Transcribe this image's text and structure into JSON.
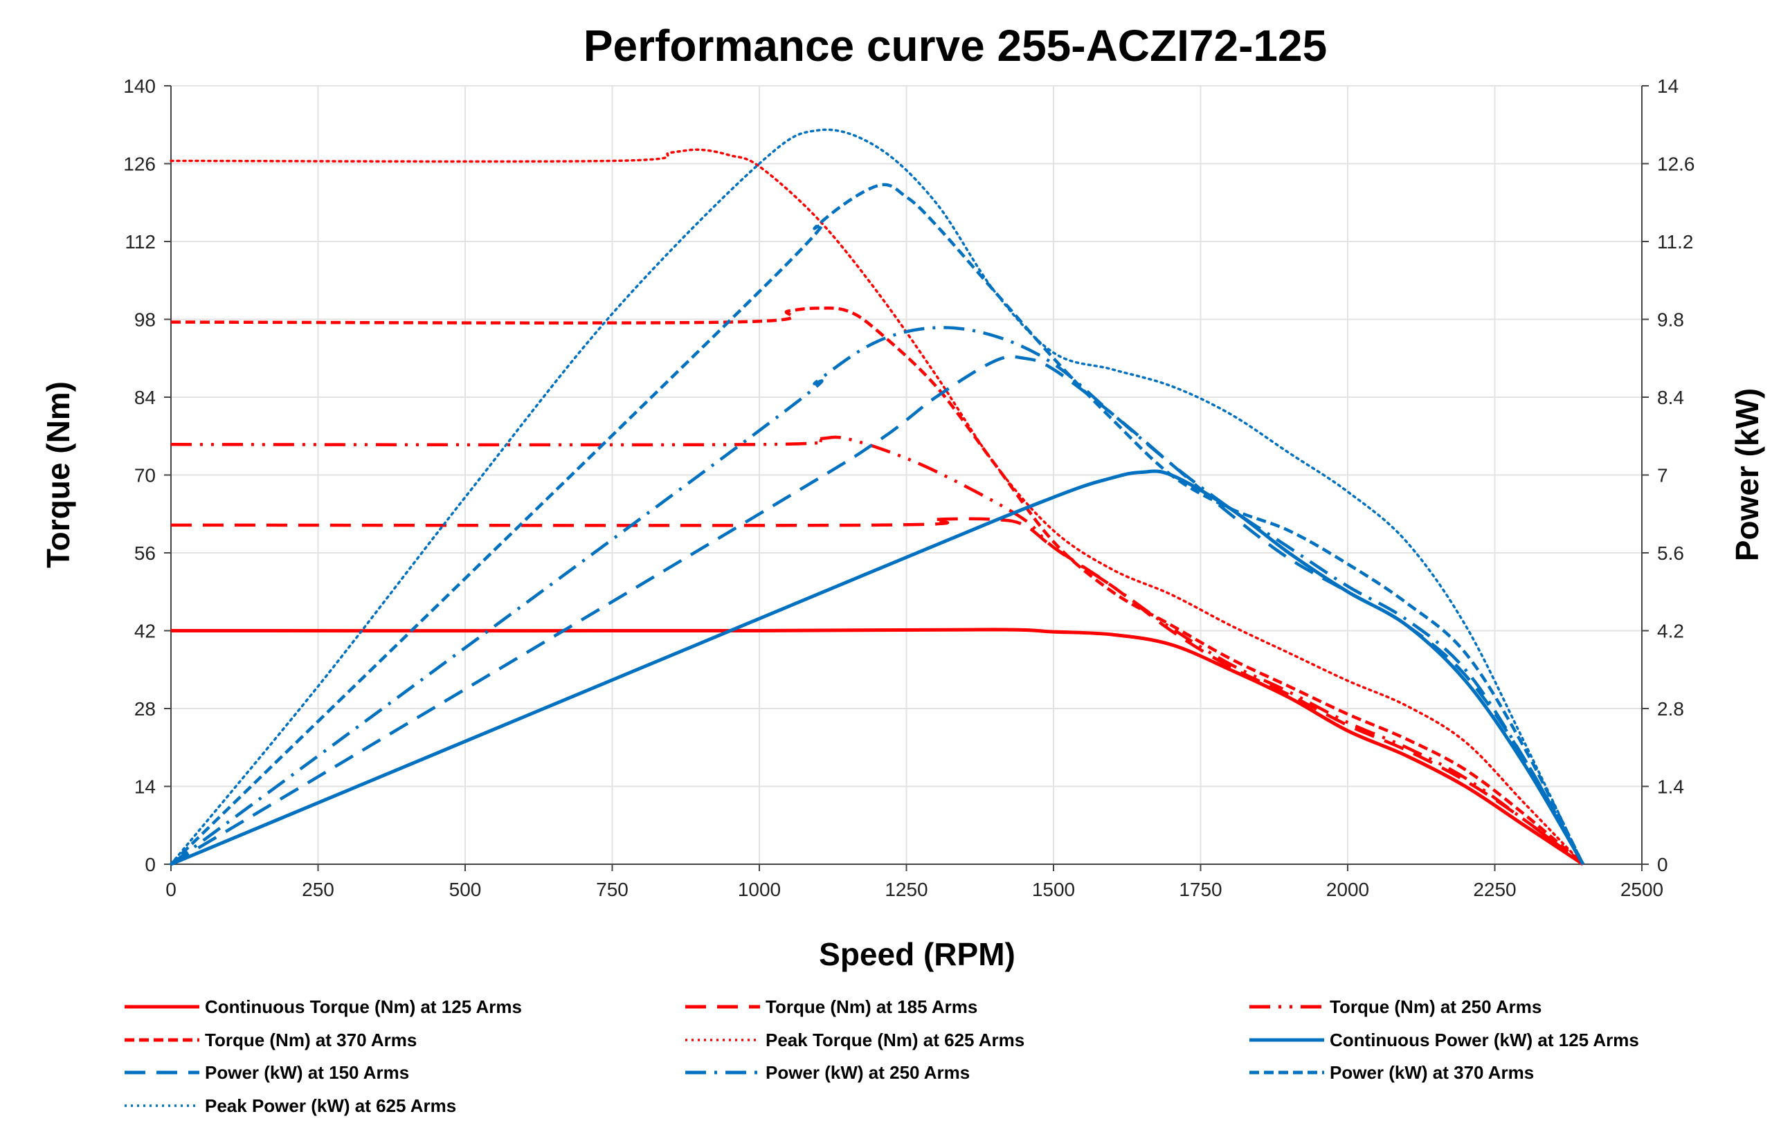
{
  "chart_data": {
    "type": "line",
    "title": "Performance curve 255-ACZI72-125",
    "xlabel": "Speed (RPM)",
    "ylabel_left": "Torque (Nm)",
    "ylabel_right": "Power (kW)",
    "xlim": [
      0,
      2500
    ],
    "ylim_left": [
      0,
      140
    ],
    "ylim_right": [
      0,
      14
    ],
    "grid": true,
    "legend_position": "bottom",
    "x_ticks": [
      "0",
      "250",
      "500",
      "750",
      "1000",
      "1250",
      "1500",
      "1750",
      "2000",
      "2250",
      "2500"
    ],
    "y_left_ticks": [
      "0",
      "14",
      "28",
      "42",
      "56",
      "70",
      "84",
      "98",
      "112",
      "126",
      "140"
    ],
    "y_right_ticks": [
      "0",
      "1.4",
      "2.8",
      "4.2",
      "5.6",
      "7",
      "8.4",
      "9.8",
      "11.2",
      "12.6",
      "14"
    ],
    "colors": {
      "torque": "#ff0000",
      "power": "#0070c0"
    },
    "series": [
      {
        "name": "Continuous Torque (Nm) at 125 Arms",
        "axis": "left",
        "color": "#ff0000",
        "style": "solid",
        "x": [
          0,
          1000,
          1400,
          1500,
          1600,
          1700,
          1800,
          1900,
          2000,
          2100,
          2200,
          2300,
          2400
        ],
        "y": [
          42,
          42,
          42.2,
          41.8,
          41.3,
          39.5,
          35,
          30,
          24,
          19.5,
          14,
          7,
          0
        ]
      },
      {
        "name": "Torque (Nm) at 185 Arms",
        "axis": "left",
        "color": "#ff0000",
        "style": "long-dash",
        "x": [
          0,
          1200,
          1300,
          1400,
          1450,
          1500,
          1600,
          1700,
          1800,
          1900,
          2000,
          2100,
          2200,
          2300,
          2400
        ],
        "y": [
          61,
          61,
          62,
          62,
          61,
          57,
          50,
          42,
          35.5,
          30.5,
          25,
          20.5,
          15,
          8,
          0
        ]
      },
      {
        "name": "Torque (Nm) at 250 Arms",
        "axis": "left",
        "color": "#ff0000",
        "style": "dash-dot-dot",
        "x": [
          0,
          1000,
          1100,
          1150,
          1250,
          1350,
          1450,
          1500,
          1600,
          1700,
          1800,
          1900,
          2000,
          2100,
          2200,
          2300,
          2400
        ],
        "y": [
          75.5,
          75.5,
          76.5,
          76.5,
          73,
          68,
          62,
          57,
          50,
          42.5,
          36,
          31,
          25.5,
          21,
          15.5,
          8,
          0
        ]
      },
      {
        "name": "Torque (Nm) at 370 Arms",
        "axis": "left",
        "color": "#ff0000",
        "style": "dash",
        "x": [
          0,
          950,
          1050,
          1100,
          1150,
          1200,
          1300,
          1400,
          1500,
          1600,
          1700,
          1800,
          1900,
          2000,
          2100,
          2200,
          2300,
          2400
        ],
        "y": [
          97.5,
          97.5,
          99.5,
          100,
          99.5,
          96,
          86,
          72,
          58,
          49,
          43,
          37,
          32,
          27,
          22.5,
          17,
          9,
          0
        ]
      },
      {
        "name": "Peak Torque (Nm) at 625 Arms",
        "axis": "left",
        "color": "#ff0000",
        "style": "dotted",
        "x": [
          0,
          750,
          850,
          900,
          950,
          1000,
          1100,
          1200,
          1300,
          1400,
          1500,
          1600,
          1700,
          1800,
          1900,
          2000,
          2100,
          2200,
          2300,
          2400
        ],
        "y": [
          126.5,
          126.5,
          128,
          128.5,
          127.5,
          125.5,
          116,
          103,
          88,
          72,
          60,
          53,
          48.5,
          43,
          38,
          33,
          28.5,
          22,
          11,
          0
        ]
      },
      {
        "name": "Continuous Power (kW) at 125 Arms",
        "axis": "right",
        "color": "#0070c0",
        "style": "solid",
        "x": [
          0,
          1200,
          1500,
          1600,
          1650,
          1700,
          1800,
          1900,
          2000,
          2100,
          2200,
          2300,
          2400
        ],
        "y": [
          0,
          5.3,
          6.6,
          6.95,
          7.05,
          7.0,
          6.4,
          5.6,
          4.9,
          4.3,
          3.3,
          1.8,
          0
        ]
      },
      {
        "name": "Power (kW) at 150 Arms",
        "axis": "right",
        "color": "#0070c0",
        "style": "long-dash",
        "x": [
          0,
          1000,
          1200,
          1300,
          1400,
          1450,
          1500,
          1600,
          1700,
          1800,
          1900,
          2000,
          2100,
          2200,
          2300,
          2400
        ],
        "y": [
          0,
          6.3,
          7.6,
          8.4,
          9.05,
          9.1,
          8.9,
          8.1,
          7.2,
          6.3,
          5.5,
          4.9,
          4.3,
          3.4,
          1.9,
          0
        ]
      },
      {
        "name": "Power (kW) at 250 Arms",
        "axis": "right",
        "color": "#0070c0",
        "style": "long-dash-dot",
        "x": [
          0,
          1000,
          1100,
          1200,
          1300,
          1400,
          1500,
          1600,
          1700,
          1800,
          1900,
          2000,
          2100,
          2200,
          2300,
          2400
        ],
        "y": [
          0,
          7.8,
          8.7,
          9.4,
          9.65,
          9.5,
          9.0,
          8.1,
          7.2,
          6.4,
          5.7,
          5.0,
          4.4,
          3.5,
          1.9,
          0
        ]
      },
      {
        "name": "Power (kW) at 370 Arms",
        "axis": "right",
        "color": "#0070c0",
        "style": "dash",
        "x": [
          0,
          1000,
          1100,
          1200,
          1250,
          1300,
          1400,
          1500,
          1600,
          1700,
          1800,
          1900,
          2000,
          2100,
          2200,
          2300,
          2400
        ],
        "y": [
          0,
          10.3,
          11.5,
          12.2,
          12.0,
          11.5,
          10.3,
          9.1,
          8.0,
          7.0,
          6.4,
          6.0,
          5.4,
          4.7,
          3.8,
          2.1,
          0
        ]
      },
      {
        "name": "Peak Power (kW) at 625 Arms",
        "axis": "right",
        "color": "#0070c0",
        "style": "dotted",
        "x": [
          0,
          250,
          500,
          750,
          1000,
          1100,
          1200,
          1300,
          1400,
          1500,
          1600,
          1700,
          1800,
          1900,
          2000,
          2100,
          2200,
          2300,
          2400
        ],
        "y": [
          0,
          3.2,
          6.6,
          9.9,
          12.6,
          13.2,
          12.9,
          11.9,
          10.3,
          9.2,
          8.9,
          8.6,
          8.1,
          7.4,
          6.7,
          5.8,
          4.3,
          2.2,
          0
        ]
      }
    ]
  }
}
